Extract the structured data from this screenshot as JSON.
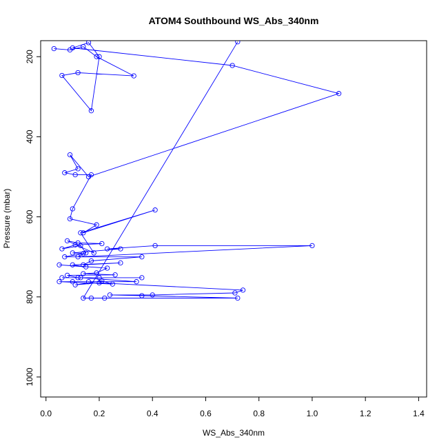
{
  "chart_data": {
    "type": "line",
    "title": "ATOM4 Southbound WS_Abs_340nm",
    "xlabel": "WS_Abs_340nm",
    "ylabel": "Pressure (mbar)",
    "xlim": [
      -0.02,
      1.43
    ],
    "ylim": [
      1050,
      160
    ],
    "y_reversed": true,
    "x_ticks": [
      "0.0",
      "0.2",
      "0.4",
      "0.6",
      "0.8",
      "1.0",
      "1.2",
      "1.4"
    ],
    "y_ticks": [
      "200",
      "400",
      "600",
      "800",
      "1000"
    ],
    "grid": false,
    "legend": "none",
    "markers": "open-circle",
    "colors": {
      "series": "#0000ff",
      "axes": "#000000",
      "background": "#ffffff"
    },
    "series": [
      {
        "x": [
          0.03,
          0.09,
          0.14,
          0.19,
          0.33,
          0.12,
          0.06,
          0.17,
          0.2,
          0.16,
          0.1,
          0.7,
          1.1,
          0.16,
          0.09,
          0.12,
          0.07,
          0.11,
          0.17,
          0.1,
          0.09,
          0.19,
          0.14,
          0.41,
          0.13,
          0.18,
          0.08,
          0.12,
          0.21,
          0.11,
          0.06,
          0.13,
          0.15,
          0.12,
          1.0,
          0.41,
          0.23,
          0.28,
          0.1,
          0.14,
          0.07,
          0.36,
          0.17,
          0.14,
          0.28,
          0.1,
          0.15,
          0.05,
          0.23,
          0.19,
          0.14,
          0.26,
          0.08,
          0.12,
          0.36,
          0.2,
          0.06,
          0.13,
          0.34,
          0.1,
          0.16,
          0.05,
          0.25,
          0.21,
          0.11,
          0.2,
          0.74,
          0.71,
          0.4,
          0.24,
          0.36,
          0.72,
          0.17,
          0.22,
          0.14,
          0.72
        ],
        "y": [
          180,
          183,
          175,
          200,
          248,
          240,
          247,
          335,
          200,
          165,
          178,
          222,
          292,
          500,
          445,
          480,
          490,
          495,
          495,
          580,
          605,
          620,
          640,
          583,
          640,
          690,
          660,
          665,
          667,
          670,
          680,
          672,
          690,
          700,
          672,
          672,
          680,
          680,
          690,
          692,
          700,
          700,
          710,
          720,
          715,
          720,
          725,
          720,
          728,
          740,
          742,
          745,
          746,
          752,
          752,
          752,
          752,
          752,
          762,
          762,
          762,
          762,
          768,
          760,
          770,
          765,
          783,
          790,
          795,
          795,
          797,
          803,
          803,
          803,
          803,
          163
        ]
      }
    ]
  }
}
